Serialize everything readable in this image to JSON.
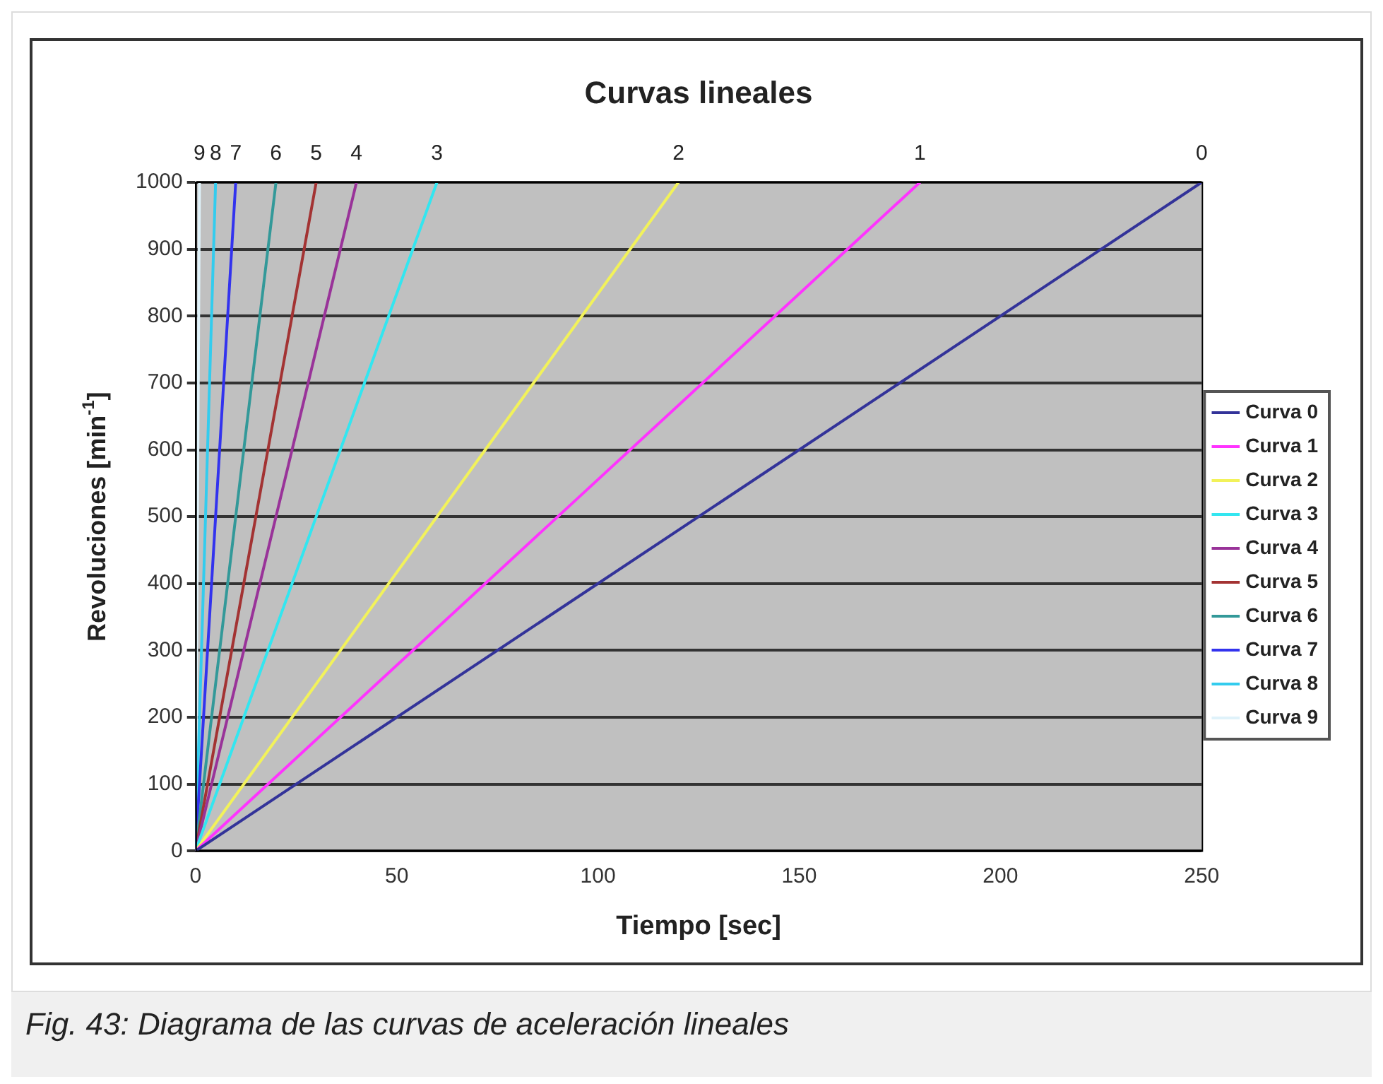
{
  "chart_data": {
    "type": "line",
    "title": "Curvas lineales",
    "xlabel": "Tiempo [sec]",
    "ylabel": "Revoluciones [min$^{-1}$]",
    "xlim": [
      0,
      250
    ],
    "xticks": [
      0,
      50,
      100,
      150,
      200,
      250
    ],
    "ylim": [
      0,
      1000
    ],
    "yticks": [
      0,
      100,
      200,
      300,
      400,
      500,
      600,
      700,
      800,
      900,
      1000
    ],
    "grid": "y",
    "legend": "right",
    "marker": "none",
    "line_style": "solid",
    "series": [
      {
        "name": "Curva 0",
        "color": "#333399",
        "x": [
          0,
          250
        ],
        "values": [
          0,
          1000
        ]
      },
      {
        "name": "Curva 1",
        "color": "#ff33ff",
        "x": [
          0,
          180
        ],
        "values": [
          0,
          1000
        ]
      },
      {
        "name": "Curva 2",
        "color": "#f2f25a",
        "x": [
          0,
          120
        ],
        "values": [
          0,
          1000
        ]
      },
      {
        "name": "Curva 3",
        "color": "#33e6f0",
        "x": [
          0,
          60
        ],
        "values": [
          0,
          1000
        ]
      },
      {
        "name": "Curva 4",
        "color": "#993399",
        "x": [
          0,
          40
        ],
        "values": [
          0,
          1000
        ]
      },
      {
        "name": "Curva 5",
        "color": "#a33333",
        "x": [
          0,
          30
        ],
        "values": [
          0,
          1000
        ]
      },
      {
        "name": "Curva 6",
        "color": "#339999",
        "x": [
          0,
          20
        ],
        "values": [
          0,
          1000
        ]
      },
      {
        "name": "Curva 7",
        "color": "#3333ee",
        "x": [
          0,
          10
        ],
        "values": [
          0,
          1000
        ]
      },
      {
        "name": "Curva 8",
        "color": "#33ccee",
        "x": [
          0,
          5
        ],
        "values": [
          0,
          1000
        ]
      },
      {
        "name": "Curva 9",
        "color": "#dff2fa",
        "x": [
          0,
          1
        ],
        "values": [
          0,
          1000
        ]
      }
    ],
    "annotations": [
      {
        "text": "0",
        "x": 250,
        "y": 1000
      },
      {
        "text": "1",
        "x": 180,
        "y": 1000
      },
      {
        "text": "2",
        "x": 120,
        "y": 1000
      },
      {
        "text": "3",
        "x": 60,
        "y": 1000
      },
      {
        "text": "4",
        "x": 40,
        "y": 1000
      },
      {
        "text": "5",
        "x": 30,
        "y": 1000
      },
      {
        "text": "6",
        "x": 20,
        "y": 1000
      },
      {
        "text": "7",
        "x": 10,
        "y": 1000
      },
      {
        "text": "8",
        "x": 5,
        "y": 1000
      },
      {
        "text": "9",
        "x": 1,
        "y": 1000
      },
      "Fig. 43: Diagrama de las curvas de aceleración lineales"
    ]
  }
}
